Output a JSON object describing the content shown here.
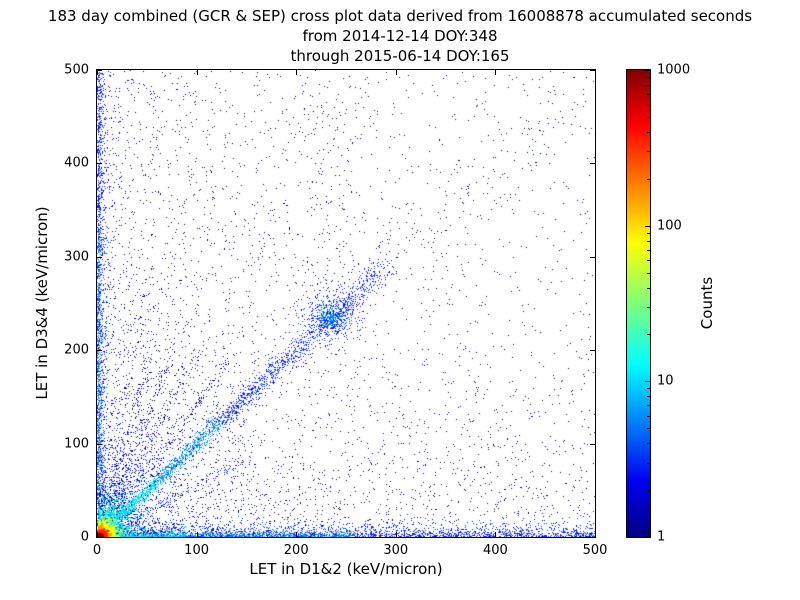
{
  "chart_data": {
    "type": "scatter",
    "title_lines": [
      "183 day combined (GCR & SEP) cross plot data derived from 16008878 accumulated seconds",
      "from 2014-12-14 DOY:348",
      "through 2015-06-14 DOY:165"
    ],
    "xlabel": "LET in D1&2 (keV/micron)",
    "ylabel": "LET in D3&4 (keV/micron)",
    "xlim": [
      0,
      500
    ],
    "ylim": [
      0,
      500
    ],
    "xticks": [
      0,
      100,
      200,
      300,
      400,
      500
    ],
    "yticks": [
      0,
      100,
      200,
      300,
      400,
      500
    ],
    "grid": false,
    "colorbar": {
      "label": "Counts",
      "scale": "log",
      "ticks": [
        1,
        10,
        100,
        1000
      ],
      "range": [
        1,
        1000
      ],
      "colormap": "jet"
    },
    "palette": {
      "navy": "#000087",
      "blue": "#0022ff",
      "azure": "#0090ff",
      "cyan": "#00e0ff",
      "green": "#54ff9b",
      "yellow": "#fcff00",
      "orange": "#ff9800",
      "red": "#ff2200",
      "darkred": "#8a0000"
    },
    "features": [
      {
        "name": "background-uniform",
        "type": "uniform",
        "n": 850,
        "x": [
          0,
          500
        ],
        "y": [
          0,
          500
        ],
        "color": "navy",
        "size": 1
      },
      {
        "name": "background-left-weighted",
        "type": "exp_x",
        "n": 1350,
        "scale": 115,
        "y": [
          0,
          500
        ],
        "color": "navy",
        "size": 1
      },
      {
        "name": "background-bottom-weighted",
        "type": "exp_y",
        "n": 1150,
        "scale": 95,
        "x": [
          0,
          500
        ],
        "color": "navy",
        "size": 1
      },
      {
        "name": "vertical-axis-band",
        "type": "exp_x",
        "n": 1350,
        "scale": 4,
        "y": [
          0,
          500
        ],
        "color": "blue",
        "size": 1
      },
      {
        "name": "vertical-axis-band-core",
        "type": "exp_x",
        "n": 450,
        "scale": 1.6,
        "y": [
          0,
          320
        ],
        "color": "azure",
        "size": 1
      },
      {
        "name": "horizontal-axis-band",
        "type": "exp_y",
        "n": 2100,
        "scale": 5,
        "x": [
          0,
          500
        ],
        "color": "blue",
        "size": 1
      },
      {
        "name": "horizontal-axis-band-mid",
        "type": "exp_y",
        "n": 850,
        "scale": 2.6,
        "x": [
          0,
          260
        ],
        "color": "azure",
        "size": 1
      },
      {
        "name": "horizontal-axis-band-core",
        "type": "exp_y",
        "n": 420,
        "scale": 2,
        "x": [
          0,
          90
        ],
        "color": "cyan",
        "size": 1
      },
      {
        "name": "upper-fan-diffuse",
        "type": "fan",
        "n": 850,
        "a1": 48,
        "a2": 88,
        "rscale": 130,
        "color": "navy",
        "size": 1
      },
      {
        "name": "lower-fan-diffuse",
        "type": "fan",
        "n": 480,
        "a1": 3,
        "a2": 42,
        "rscale": 125,
        "color": "navy",
        "size": 1
      },
      {
        "name": "upper-column-diffuse",
        "type": "vstripe",
        "n": 150,
        "cx": 236,
        "sx": 24,
        "y": [
          250,
          500
        ],
        "color": "navy",
        "size": 1
      },
      {
        "name": "diagonal-sparse-extension",
        "type": "diag",
        "n": 380,
        "tmax": 500,
        "tpow": 1.0,
        "jitter": 9,
        "color": "navy",
        "size": 1
      },
      {
        "name": "main-diagonal-band",
        "type": "diag",
        "n": 2500,
        "tmax": 285,
        "tpow": 1.6,
        "jitter": 4.5,
        "stops": [
          [
            20,
            "green"
          ],
          [
            60,
            "cyan"
          ],
          [
            125,
            "azure"
          ],
          [
            9999,
            "blue"
          ]
        ],
        "size": 1
      },
      {
        "name": "diagonal-blob",
        "type": "gaussian",
        "n": 430,
        "cx": 234,
        "cy": 237,
        "sx": 14,
        "sy": 13,
        "color": "blue",
        "size": 1
      },
      {
        "name": "diagonal-blob-core",
        "type": "gaussian",
        "n": 140,
        "cx": 233,
        "cy": 236,
        "sx": 6,
        "sy": 6,
        "color": "azure",
        "size": 1
      },
      {
        "name": "ray-1",
        "type": "ray",
        "n": 240,
        "m": 1.45,
        "rmax": 240,
        "rpow": 1.4,
        "jitter": 2.8,
        "stops": [
          [
            55,
            "azure"
          ],
          [
            130,
            "blue"
          ],
          [
            9999,
            "navy"
          ]
        ],
        "size": 1
      },
      {
        "name": "ray-2",
        "type": "ray",
        "n": 210,
        "m": 1.95,
        "rmax": 220,
        "rpow": 1.4,
        "jitter": 2.8,
        "stops": [
          [
            55,
            "azure"
          ],
          [
            130,
            "blue"
          ],
          [
            9999,
            "navy"
          ]
        ],
        "size": 1
      },
      {
        "name": "ray-3",
        "type": "ray",
        "n": 180,
        "m": 2.6,
        "rmax": 205,
        "rpow": 1.4,
        "jitter": 2.8,
        "stops": [
          [
            50,
            "azure"
          ],
          [
            120,
            "blue"
          ],
          [
            9999,
            "navy"
          ]
        ],
        "size": 1
      },
      {
        "name": "ray-4",
        "type": "ray",
        "n": 150,
        "m": 3.6,
        "rmax": 195,
        "rpow": 1.4,
        "jitter": 2.8,
        "stops": [
          [
            50,
            "azure"
          ],
          [
            120,
            "blue"
          ],
          [
            9999,
            "navy"
          ]
        ],
        "size": 1
      },
      {
        "name": "ray-5",
        "type": "ray",
        "n": 140,
        "m": 5.3,
        "rmax": 270,
        "rpow": 1.4,
        "jitter": 3.2,
        "stops": [
          [
            60,
            "azure"
          ],
          [
            140,
            "blue"
          ],
          [
            9999,
            "navy"
          ]
        ],
        "size": 1
      },
      {
        "name": "ray-sub-diagonal",
        "type": "ray",
        "n": 150,
        "m": 0.55,
        "rmax": 170,
        "rpow": 1.3,
        "jitter": 2.5,
        "stops": [
          [
            60,
            "azure"
          ],
          [
            9999,
            "blue"
          ]
        ],
        "size": 1
      },
      {
        "name": "origin-halo-blue",
        "type": "gaussian",
        "n": 750,
        "cx": 4,
        "cy": 4,
        "sx": 40,
        "sy": 40,
        "color": "blue",
        "size": 1
      },
      {
        "name": "origin-halo-azure",
        "type": "gaussian",
        "n": 600,
        "cx": 3,
        "cy": 3,
        "sx": 25,
        "sy": 25,
        "color": "azure",
        "size": 1
      },
      {
        "name": "origin-ring-cyan",
        "type": "gaussian",
        "n": 650,
        "cx": 3,
        "cy": 3,
        "sx": 16,
        "sy": 16,
        "color": "cyan",
        "size": 2
      },
      {
        "name": "origin-ring-green",
        "type": "gaussian",
        "n": 550,
        "cx": 3,
        "cy": 3,
        "sx": 10,
        "sy": 10,
        "color": "green",
        "size": 2
      },
      {
        "name": "origin-ring-yellow",
        "type": "gaussian",
        "n": 500,
        "cx": 3,
        "cy": 3,
        "sx": 6.5,
        "sy": 6.5,
        "color": "yellow",
        "size": 2
      },
      {
        "name": "origin-ring-orange",
        "type": "gaussian",
        "n": 450,
        "cx": 2.5,
        "cy": 2.5,
        "sx": 4.2,
        "sy": 4.2,
        "color": "orange",
        "size": 2
      },
      {
        "name": "origin-core-red",
        "type": "gaussian",
        "n": 420,
        "cx": 2,
        "cy": 2,
        "sx": 2.6,
        "sy": 2.6,
        "color": "red",
        "size": 2
      },
      {
        "name": "origin-core-darkred",
        "type": "gaussian",
        "n": 240,
        "cx": 1.5,
        "cy": 1.5,
        "sx": 1.2,
        "sy": 1.2,
        "color": "darkred",
        "size": 2
      }
    ]
  }
}
